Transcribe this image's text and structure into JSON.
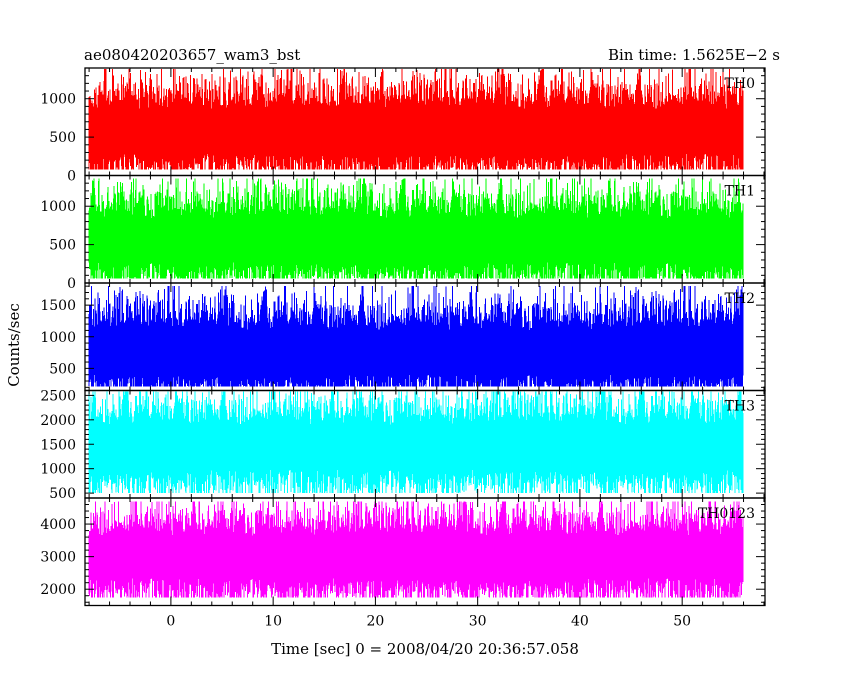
{
  "header": {
    "left": "ae080420203657_wam3_bst",
    "right": "Bin time: 1.5625E−2 s"
  },
  "chart_data": {
    "type": "line",
    "xlabel": "Time [sec] 0 = 2008/04/20 20:36:57.058",
    "ylabel": "Counts/sec",
    "xlim": [
      -8.4,
      58.1
    ],
    "x_ticks": [
      0,
      10,
      20,
      30,
      40,
      50
    ],
    "x_range_data": [
      -8,
      56
    ],
    "bin_time_s": 0.015625,
    "panels": [
      {
        "name": "TH0",
        "color": "#ff0000",
        "ylim": [
          0,
          1400
        ],
        "y_ticks": [
          0,
          500,
          1000
        ],
        "mean": 580,
        "envelope": [
          80,
          1390
        ]
      },
      {
        "name": "TH1",
        "color": "#00ff00",
        "ylim": [
          0,
          1400
        ],
        "y_ticks": [
          0,
          500,
          1000
        ],
        "mean": 560,
        "envelope": [
          60,
          1360
        ]
      },
      {
        "name": "TH2",
        "color": "#0000ff",
        "ylim": [
          150,
          1850
        ],
        "y_ticks": [
          500,
          1000,
          1500
        ],
        "mean": 760,
        "envelope": [
          210,
          1800
        ]
      },
      {
        "name": "TH3",
        "color": "#00ffff",
        "ylim": [
          400,
          2600
        ],
        "y_ticks": [
          500,
          1000,
          1500,
          2000,
          2500
        ],
        "mean": 1450,
        "envelope": [
          500,
          2580
        ]
      },
      {
        "name": "TH0123",
        "color": "#ff00ff",
        "ylim": [
          1500,
          4800
        ],
        "y_ticks": [
          2000,
          3000,
          4000
        ],
        "mean": 3000,
        "envelope": [
          1750,
          4700
        ]
      }
    ]
  }
}
